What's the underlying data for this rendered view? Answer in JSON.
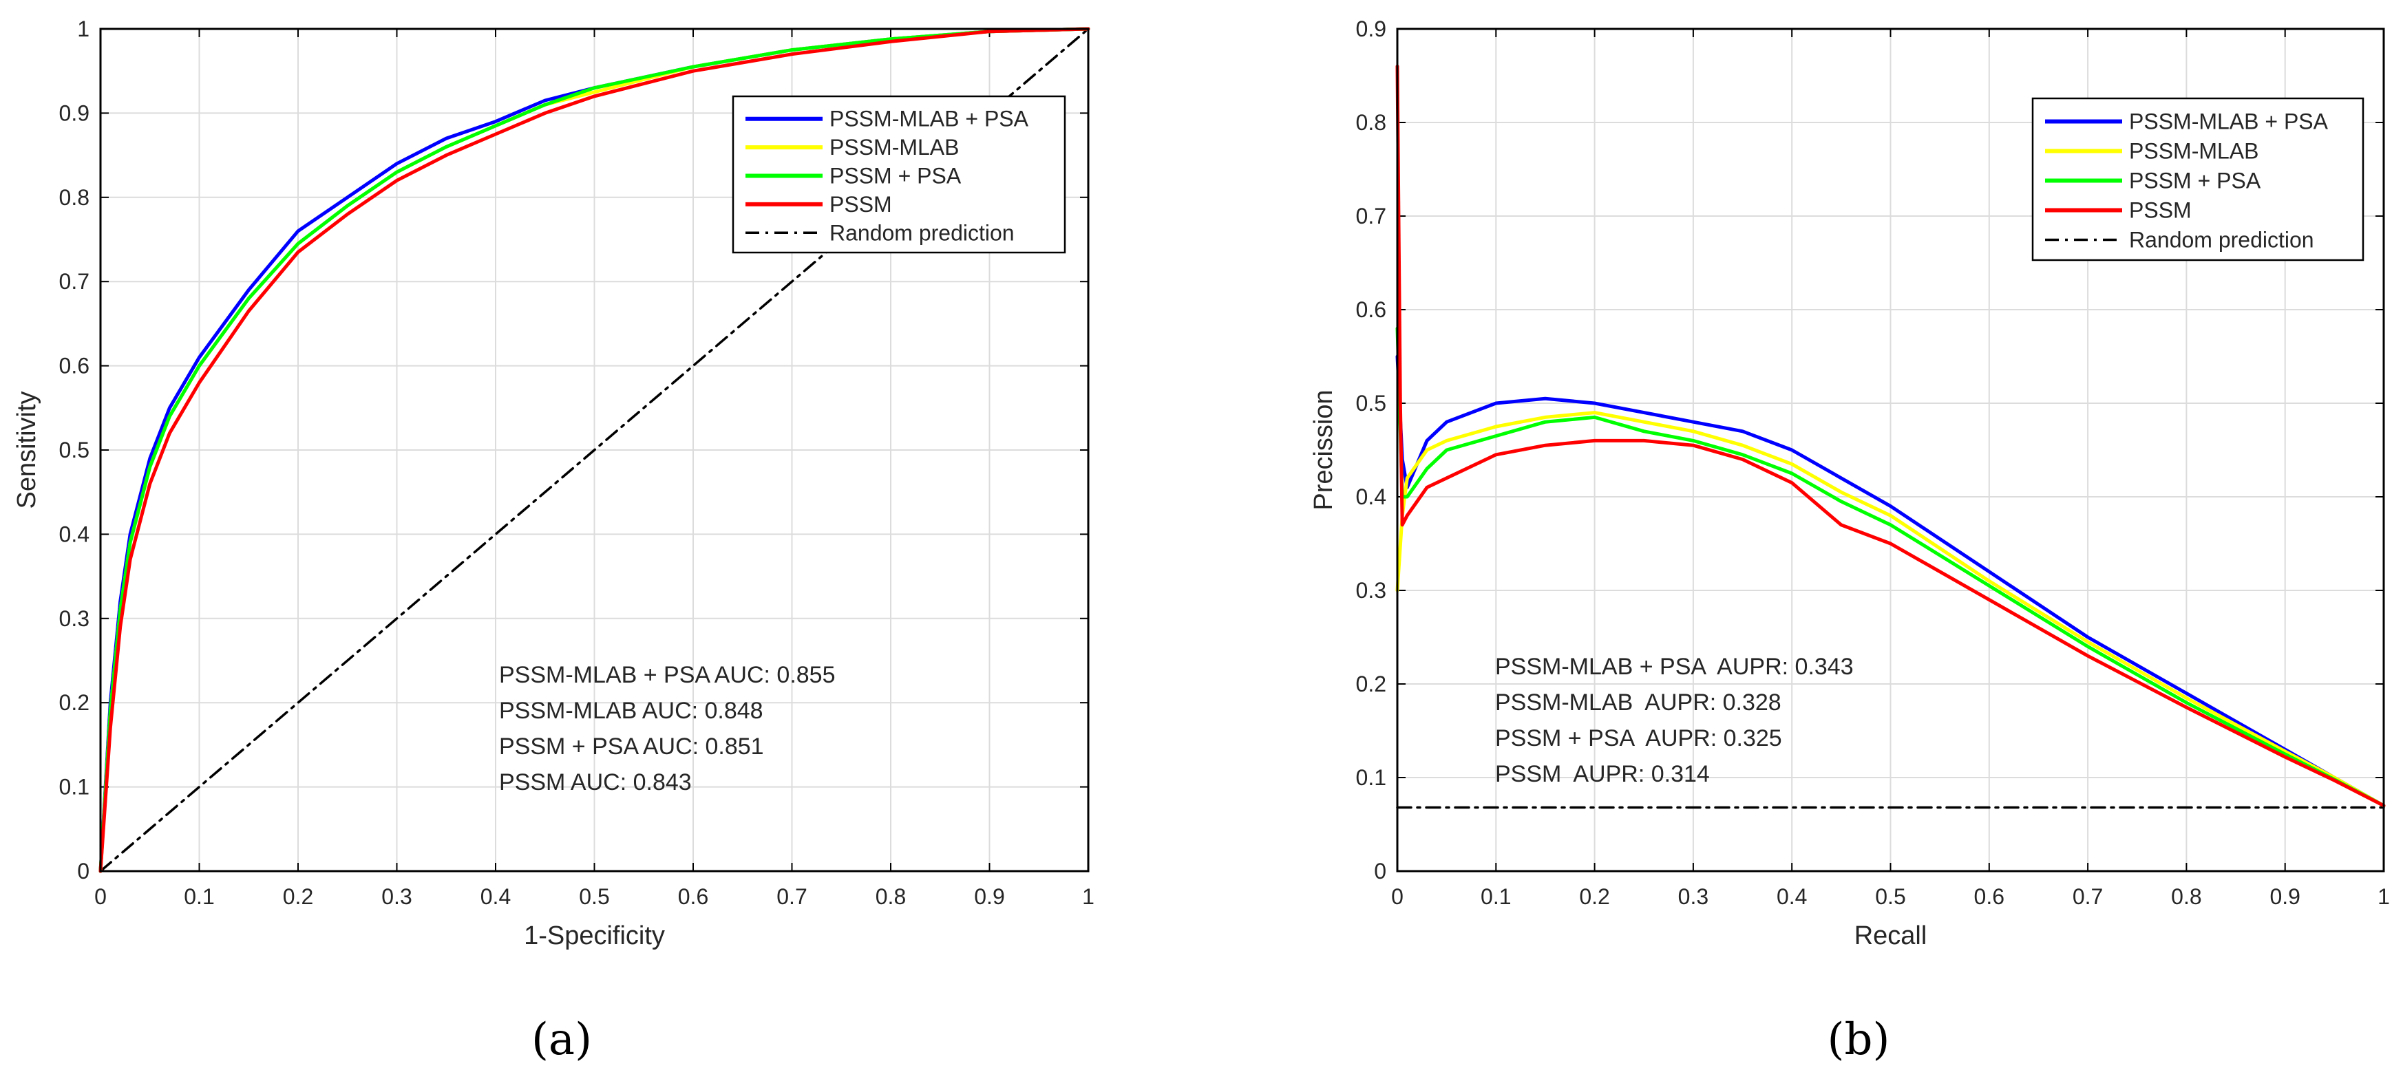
{
  "chart_data": [
    {
      "id": "a",
      "type": "line",
      "xlabel": "1-Specificity",
      "ylabel": "Sensitivity",
      "xlim": [
        0,
        1
      ],
      "ylim": [
        0,
        1
      ],
      "xticks": [
        0,
        0.1,
        0.2,
        0.3,
        0.4,
        0.5,
        0.6,
        0.7,
        0.8,
        0.9,
        1
      ],
      "yticks": [
        0,
        0.1,
        0.2,
        0.3,
        0.4,
        0.5,
        0.6,
        0.7,
        0.8,
        0.9,
        1
      ],
      "xtick_labels": [
        "0",
        "0.1",
        "0.2",
        "0.3",
        "0.4",
        "0.5",
        "0.6",
        "0.7",
        "0.8",
        "0.9",
        "1"
      ],
      "ytick_labels": [
        "0",
        "0.1",
        "0.2",
        "0.3",
        "0.4",
        "0.5",
        "0.6",
        "0.7",
        "0.8",
        "0.9",
        "1"
      ],
      "grid": true,
      "legend_position": "top-right",
      "series": [
        {
          "name": "PSSM-MLAB + PSA",
          "color": "#0000ff",
          "style": "solid",
          "x": [
            0,
            0.01,
            0.02,
            0.03,
            0.05,
            0.07,
            0.1,
            0.15,
            0.2,
            0.25,
            0.3,
            0.35,
            0.4,
            0.45,
            0.5,
            0.6,
            0.7,
            0.8,
            0.9,
            1
          ],
          "y": [
            0,
            0.2,
            0.32,
            0.4,
            0.49,
            0.55,
            0.61,
            0.69,
            0.76,
            0.8,
            0.84,
            0.87,
            0.89,
            0.915,
            0.93,
            0.955,
            0.975,
            0.988,
            0.997,
            1
          ]
        },
        {
          "name": "PSSM-MLAB",
          "color": "#ffff00",
          "style": "solid",
          "x": [
            0,
            0.01,
            0.02,
            0.03,
            0.05,
            0.07,
            0.1,
            0.15,
            0.2,
            0.25,
            0.3,
            0.35,
            0.4,
            0.45,
            0.5,
            0.6,
            0.7,
            0.8,
            0.9,
            1
          ],
          "y": [
            0,
            0.19,
            0.31,
            0.39,
            0.48,
            0.54,
            0.6,
            0.68,
            0.745,
            0.79,
            0.83,
            0.86,
            0.885,
            0.91,
            0.925,
            0.955,
            0.975,
            0.988,
            0.997,
            1
          ]
        },
        {
          "name": "PSSM + PSA",
          "color": "#00ff00",
          "style": "solid",
          "x": [
            0,
            0.01,
            0.02,
            0.03,
            0.05,
            0.07,
            0.1,
            0.15,
            0.2,
            0.25,
            0.3,
            0.35,
            0.4,
            0.45,
            0.5,
            0.6,
            0.7,
            0.8,
            0.9,
            1
          ],
          "y": [
            0,
            0.19,
            0.31,
            0.39,
            0.48,
            0.54,
            0.6,
            0.68,
            0.745,
            0.79,
            0.83,
            0.86,
            0.885,
            0.91,
            0.93,
            0.955,
            0.975,
            0.988,
            0.997,
            1
          ]
        },
        {
          "name": "PSSM",
          "color": "#ff0000",
          "style": "solid",
          "x": [
            0,
            0.01,
            0.02,
            0.03,
            0.05,
            0.07,
            0.1,
            0.15,
            0.2,
            0.25,
            0.3,
            0.35,
            0.4,
            0.45,
            0.5,
            0.6,
            0.7,
            0.8,
            0.9,
            1
          ],
          "y": [
            0,
            0.17,
            0.29,
            0.37,
            0.46,
            0.52,
            0.58,
            0.665,
            0.735,
            0.78,
            0.82,
            0.85,
            0.875,
            0.9,
            0.92,
            0.95,
            0.97,
            0.985,
            0.997,
            1
          ]
        },
        {
          "name": "Random prediction",
          "color": "#000000",
          "style": "dashdot",
          "x": [
            0,
            1
          ],
          "y": [
            0,
            1
          ]
        }
      ],
      "annotations": [
        "PSSM-MLAB + PSA AUC: 0.855",
        "PSSM-MLAB AUC: 0.848",
        "PSSM + PSA AUC: 0.851",
        "PSSM AUC: 0.843"
      ],
      "panel_label": "(a)"
    },
    {
      "id": "b",
      "type": "line",
      "xlabel": "Recall",
      "ylabel": "Precission",
      "xlim": [
        0,
        1
      ],
      "ylim": [
        0,
        0.9
      ],
      "xticks": [
        0,
        0.1,
        0.2,
        0.3,
        0.4,
        0.5,
        0.6,
        0.7,
        0.8,
        0.9,
        1
      ],
      "yticks": [
        0,
        0.1,
        0.2,
        0.3,
        0.4,
        0.5,
        0.6,
        0.7,
        0.8,
        0.9
      ],
      "xtick_labels": [
        "0",
        "0.1",
        "0.2",
        "0.3",
        "0.4",
        "0.5",
        "0.6",
        "0.7",
        "0.8",
        "0.9",
        "1"
      ],
      "ytick_labels": [
        "0",
        "0.1",
        "0.2",
        "0.3",
        "0.4",
        "0.5",
        "0.6",
        "0.7",
        "0.8",
        "0.9"
      ],
      "grid": true,
      "legend_position": "top-right",
      "series": [
        {
          "name": "PSSM-MLAB + PSA",
          "color": "#0000ff",
          "style": "solid",
          "x": [
            0,
            0.005,
            0.01,
            0.03,
            0.05,
            0.1,
            0.15,
            0.2,
            0.25,
            0.3,
            0.35,
            0.4,
            0.45,
            0.5,
            0.6,
            0.7,
            0.8,
            0.9,
            0.95,
            1
          ],
          "y": [
            0.55,
            0.44,
            0.41,
            0.46,
            0.48,
            0.5,
            0.505,
            0.5,
            0.49,
            0.48,
            0.47,
            0.45,
            0.42,
            0.39,
            0.32,
            0.25,
            0.19,
            0.13,
            0.1,
            0.07
          ]
        },
        {
          "name": "PSSM-MLAB",
          "color": "#ffff00",
          "style": "solid",
          "x": [
            0,
            0.005,
            0.01,
            0.03,
            0.05,
            0.1,
            0.15,
            0.2,
            0.25,
            0.3,
            0.35,
            0.4,
            0.45,
            0.5,
            0.6,
            0.7,
            0.8,
            0.9,
            0.95,
            1
          ],
          "y": [
            0.3,
            0.38,
            0.42,
            0.45,
            0.46,
            0.475,
            0.485,
            0.49,
            0.48,
            0.47,
            0.455,
            0.435,
            0.405,
            0.38,
            0.31,
            0.245,
            0.185,
            0.128,
            0.1,
            0.07
          ]
        },
        {
          "name": "PSSM + PSA",
          "color": "#00ff00",
          "style": "solid",
          "x": [
            0,
            0.005,
            0.01,
            0.03,
            0.05,
            0.1,
            0.15,
            0.2,
            0.25,
            0.3,
            0.35,
            0.4,
            0.45,
            0.5,
            0.6,
            0.7,
            0.8,
            0.9,
            0.95,
            1
          ],
          "y": [
            0.58,
            0.4,
            0.4,
            0.43,
            0.45,
            0.465,
            0.48,
            0.485,
            0.47,
            0.46,
            0.445,
            0.425,
            0.395,
            0.37,
            0.305,
            0.24,
            0.18,
            0.125,
            0.098,
            0.07
          ]
        },
        {
          "name": "PSSM",
          "color": "#ff0000",
          "style": "solid",
          "x": [
            0,
            0.003,
            0.005,
            0.01,
            0.03,
            0.05,
            0.1,
            0.15,
            0.2,
            0.25,
            0.3,
            0.35,
            0.4,
            0.45,
            0.5,
            0.6,
            0.7,
            0.8,
            0.9,
            0.95,
            1
          ],
          "y": [
            0.86,
            0.5,
            0.37,
            0.38,
            0.41,
            0.42,
            0.445,
            0.455,
            0.46,
            0.46,
            0.455,
            0.44,
            0.415,
            0.37,
            0.35,
            0.29,
            0.23,
            0.175,
            0.122,
            0.097,
            0.07
          ]
        },
        {
          "name": "Random prediction",
          "color": "#000000",
          "style": "dashdot",
          "x": [
            0,
            1
          ],
          "y": [
            0.068,
            0.068
          ]
        }
      ],
      "annotations": [
        "PSSM-MLAB + PSA  AUPR: 0.343",
        "PSSM-MLAB  AUPR: 0.328",
        "PSSM + PSA  AUPR: 0.325",
        "PSSM  AUPR: 0.314"
      ],
      "panel_label": "(b)"
    }
  ]
}
